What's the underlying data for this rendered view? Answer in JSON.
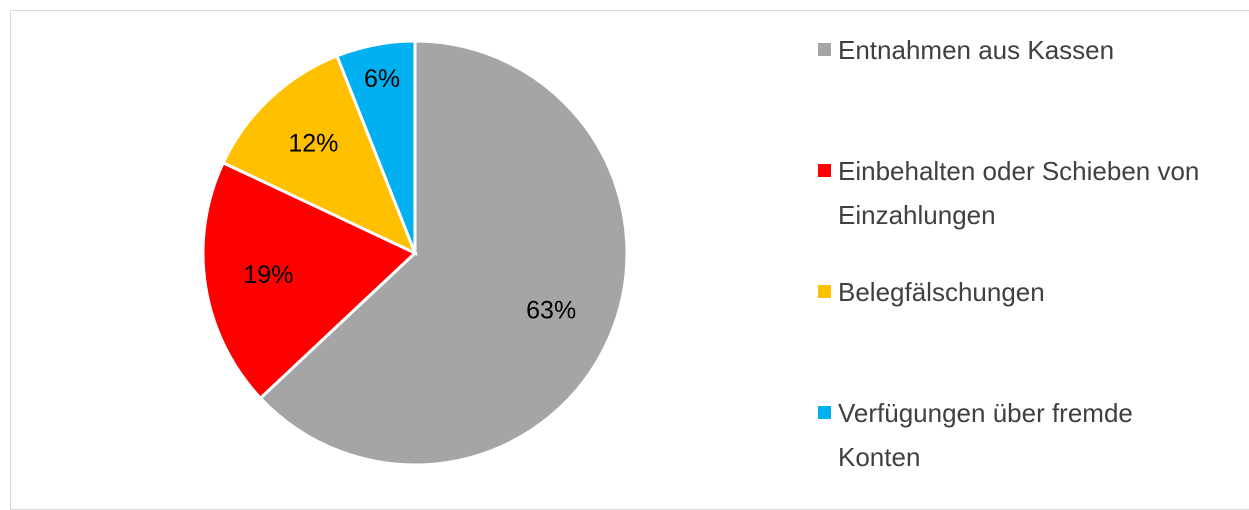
{
  "chart_data": {
    "type": "pie",
    "categories": [
      "Entnahmen aus Kassen",
      "Einbehalten oder Schieben von Einzahlungen",
      "Belegfälschungen",
      "Verfügungen über fremde Konten"
    ],
    "values": [
      63,
      19,
      12,
      6
    ],
    "value_labels": [
      "63%",
      "19%",
      "12%",
      "6%"
    ],
    "colors": [
      "#a5a5a5",
      "#ff0000",
      "#ffc000",
      "#00b0f0"
    ],
    "legend": "right"
  }
}
